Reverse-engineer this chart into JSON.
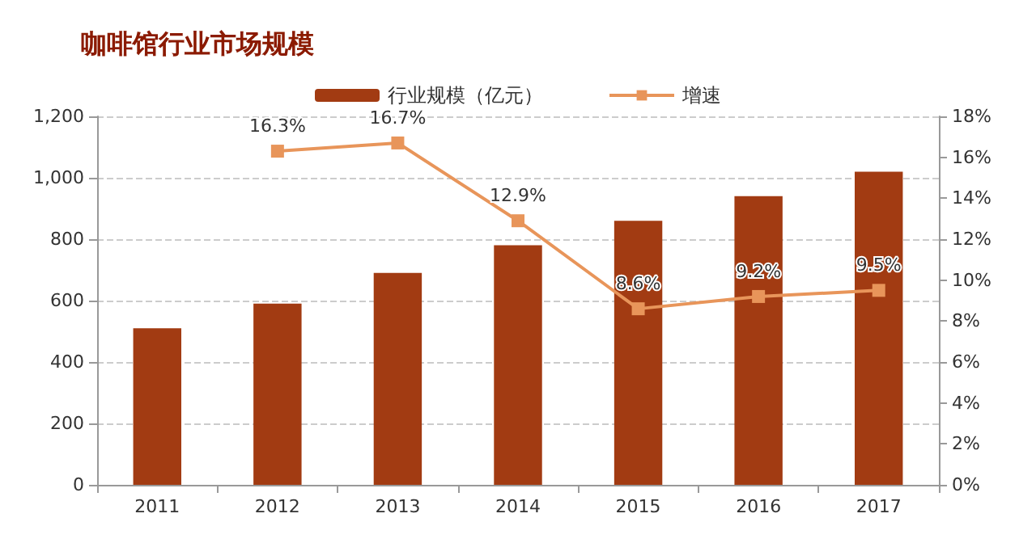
{
  "chart_data": {
    "type": "bar",
    "title": "咖啡馆行业市场规模",
    "categories": [
      "2011",
      "2012",
      "2013",
      "2014",
      "2015",
      "2016",
      "2017"
    ],
    "series": [
      {
        "name": "行业规模（亿元）",
        "color": "#a23b12",
        "values": [
          510,
          590,
          690,
          780,
          860,
          940,
          1020
        ]
      },
      {
        "name": "增速",
        "type": "line",
        "axis": "y2",
        "color": "#e8955a",
        "marker": "square",
        "values": [
          null,
          16.3,
          16.7,
          12.9,
          8.6,
          9.2,
          9.5
        ],
        "value_labels": [
          null,
          "16.3%",
          "16.7%",
          "12.9%",
          "8.6%",
          "9.2%",
          "9.5%"
        ]
      }
    ],
    "ylim": [
      0,
      1200
    ],
    "yticks": [
      0,
      200,
      400,
      600,
      800,
      {
        "value": 1000,
        "label": "1,000"
      },
      {
        "value": 1200,
        "label": "1,200"
      }
    ],
    "y2lim": [
      0,
      18
    ],
    "y2ticks": [
      {
        "value": 0,
        "label": "0%"
      },
      {
        "value": 2,
        "label": "2%"
      },
      {
        "value": 4,
        "label": "4%"
      },
      {
        "value": 6,
        "label": "6%"
      },
      {
        "value": 8,
        "label": "8%"
      },
      {
        "value": 10,
        "label": "10%"
      },
      {
        "value": 12,
        "label": "12%"
      },
      {
        "value": 14,
        "label": "14%"
      },
      {
        "value": 16,
        "label": "16%"
      },
      {
        "value": 18,
        "label": "18%"
      }
    ],
    "grid": "y",
    "legend": "top"
  }
}
